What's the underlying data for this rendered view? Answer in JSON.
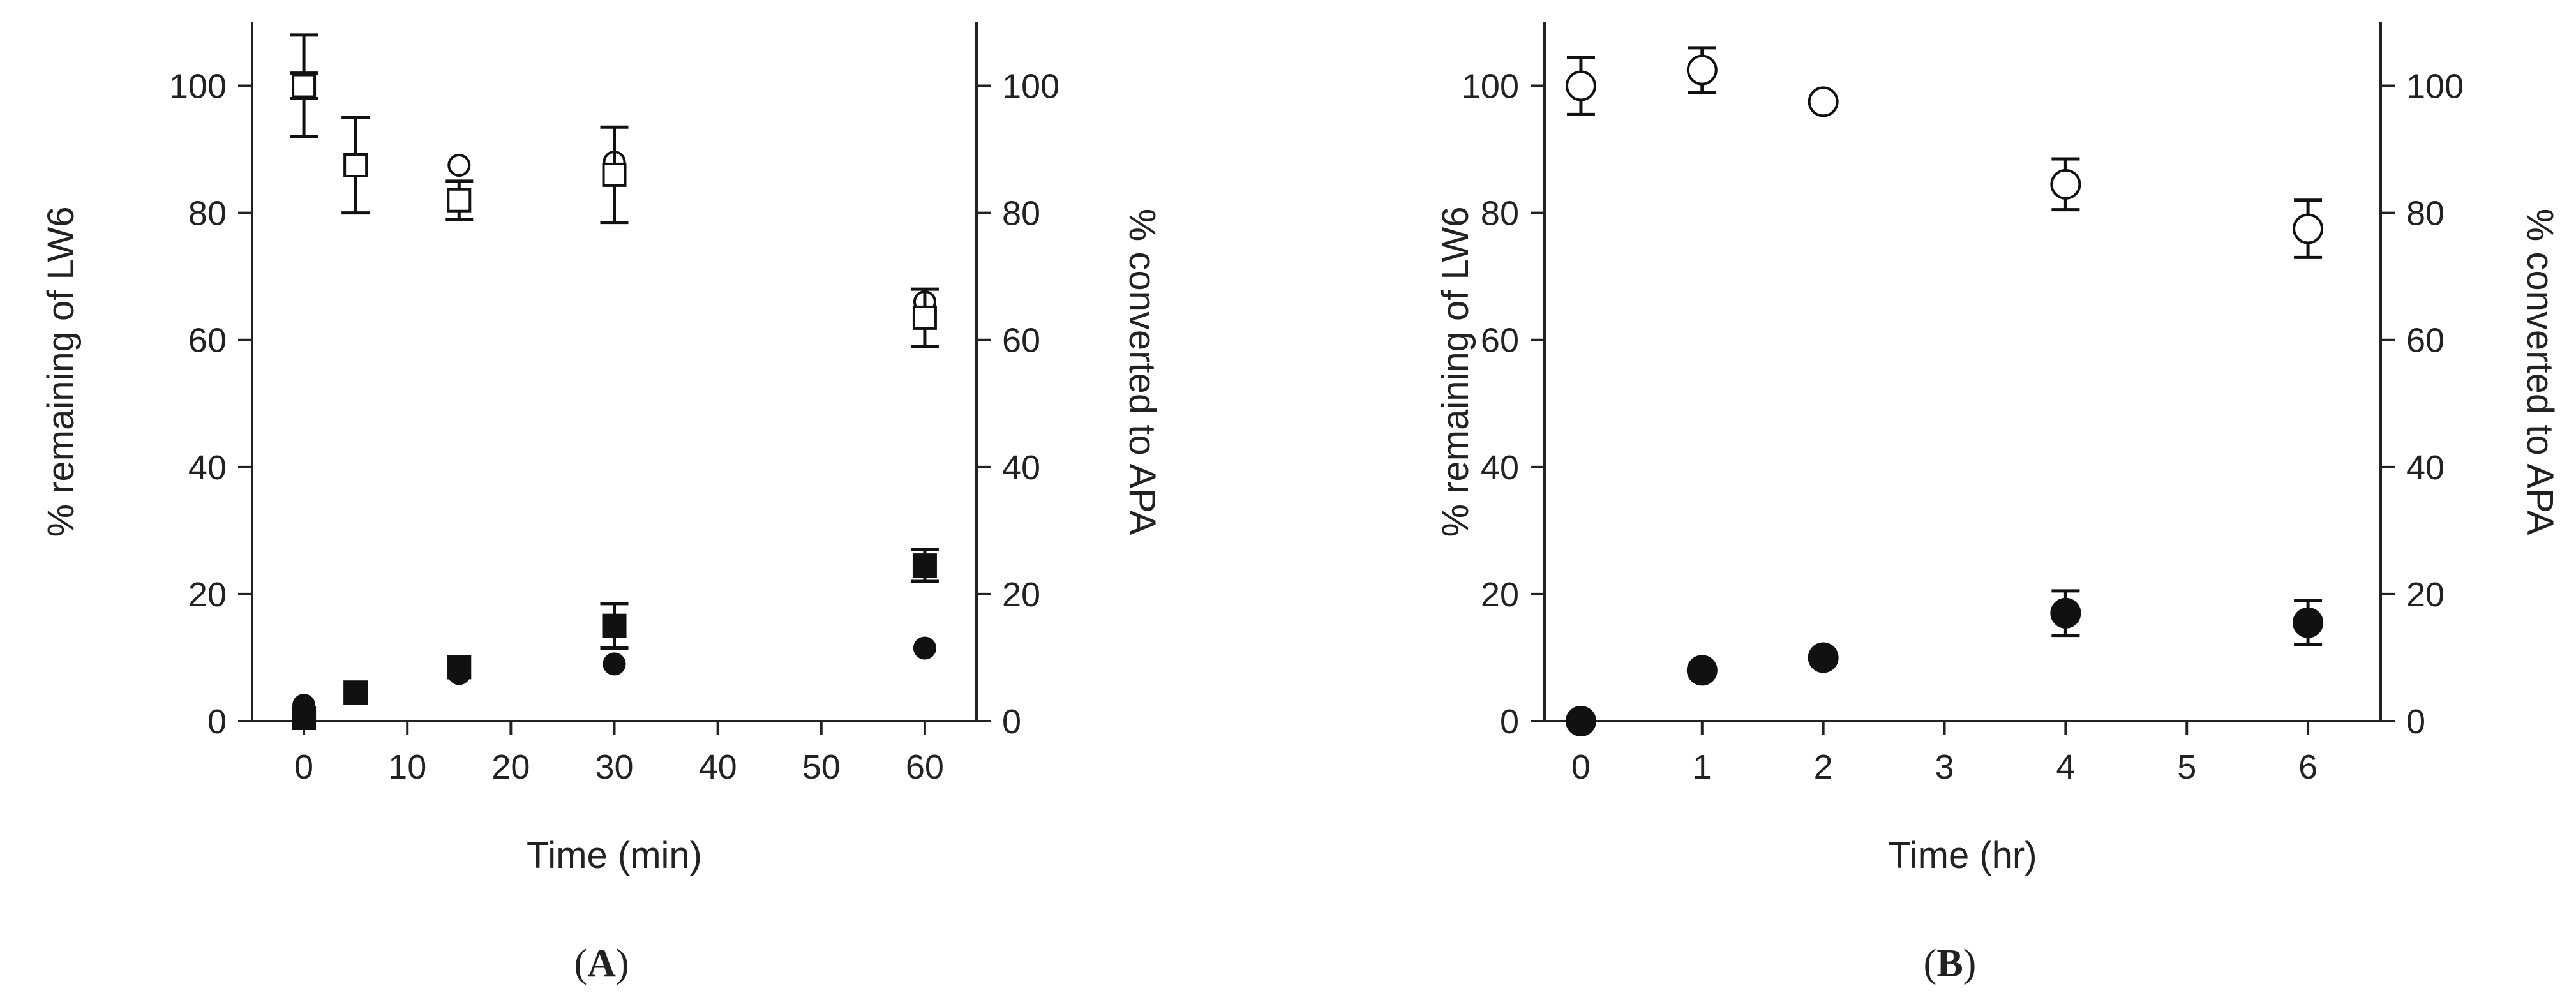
{
  "chart_data": [
    {
      "panel_label": "(A)",
      "panel_letter": "A",
      "type": "scatter",
      "xlabel": "Time (min)",
      "ylabel_left": "% remaining of LW6",
      "ylabel_right": "% converted to APA",
      "xlim": [
        -5,
        65
      ],
      "ylim": [
        0,
        110
      ],
      "xticks": [
        0,
        10,
        20,
        30,
        40,
        50,
        60
      ],
      "yticks": [
        0,
        20,
        40,
        60,
        80,
        100
      ],
      "grid": false,
      "series": [
        {
          "marker": "circle-open",
          "points": [
            {
              "x": 0,
              "y": 100,
              "err": 2
            },
            {
              "x": 5,
              "y": 87.5,
              "err": 0
            },
            {
              "x": 15,
              "y": 87.5,
              "err": 0
            },
            {
              "x": 30,
              "y": 88,
              "err": 0
            },
            {
              "x": 60,
              "y": 66,
              "err": 0
            }
          ]
        },
        {
          "marker": "square-open",
          "points": [
            {
              "x": 0,
              "y": 100,
              "err": 8
            },
            {
              "x": 5,
              "y": 87.5,
              "err": 7.5
            },
            {
              "x": 15,
              "y": 82,
              "err": 3
            },
            {
              "x": 30,
              "y": 86,
              "err": 7.5
            },
            {
              "x": 60,
              "y": 63.5,
              "err": 4.5
            }
          ]
        },
        {
          "marker": "circle-filled",
          "points": [
            {
              "x": 0,
              "y": 2.5,
              "err": 0
            },
            {
              "x": 15,
              "y": 7.5,
              "err": 0
            },
            {
              "x": 30,
              "y": 9,
              "err": 0
            },
            {
              "x": 60,
              "y": 11.5,
              "err": 0
            }
          ]
        },
        {
          "marker": "square-filled",
          "points": [
            {
              "x": 0,
              "y": 0.5,
              "err": 0
            },
            {
              "x": 5,
              "y": 4.5,
              "err": 0
            },
            {
              "x": 15,
              "y": 8.5,
              "err": 0
            },
            {
              "x": 30,
              "y": 15,
              "err": 3.5
            },
            {
              "x": 60,
              "y": 24.5,
              "err": 2.5
            }
          ]
        }
      ]
    },
    {
      "panel_label": "(B)",
      "panel_letter": "B",
      "type": "scatter",
      "xlabel": "Time (hr)",
      "ylabel_left": "% remaining of LW6",
      "ylabel_right": "% converted to APA",
      "xlim": [
        -0.3,
        6.6
      ],
      "ylim": [
        0,
        110
      ],
      "xticks": [
        0,
        1,
        2,
        3,
        4,
        5,
        6
      ],
      "yticks": [
        0,
        20,
        40,
        60,
        80,
        100
      ],
      "grid": false,
      "series": [
        {
          "marker": "circle-open-large",
          "points": [
            {
              "x": 0,
              "y": 100,
              "err": 4.5
            },
            {
              "x": 1,
              "y": 102.5,
              "err": 3.5
            },
            {
              "x": 2,
              "y": 97.5,
              "err": 0
            },
            {
              "x": 4,
              "y": 84.5,
              "err": 4
            },
            {
              "x": 6,
              "y": 77.5,
              "err": 4.5
            }
          ]
        },
        {
          "marker": "circle-filled-large",
          "points": [
            {
              "x": 0,
              "y": 0,
              "err": 0
            },
            {
              "x": 1,
              "y": 8,
              "err": 0
            },
            {
              "x": 2,
              "y": 10,
              "err": 0
            },
            {
              "x": 4,
              "y": 17,
              "err": 3.5
            },
            {
              "x": 6,
              "y": 15.5,
              "err": 3.5
            }
          ]
        }
      ]
    }
  ]
}
